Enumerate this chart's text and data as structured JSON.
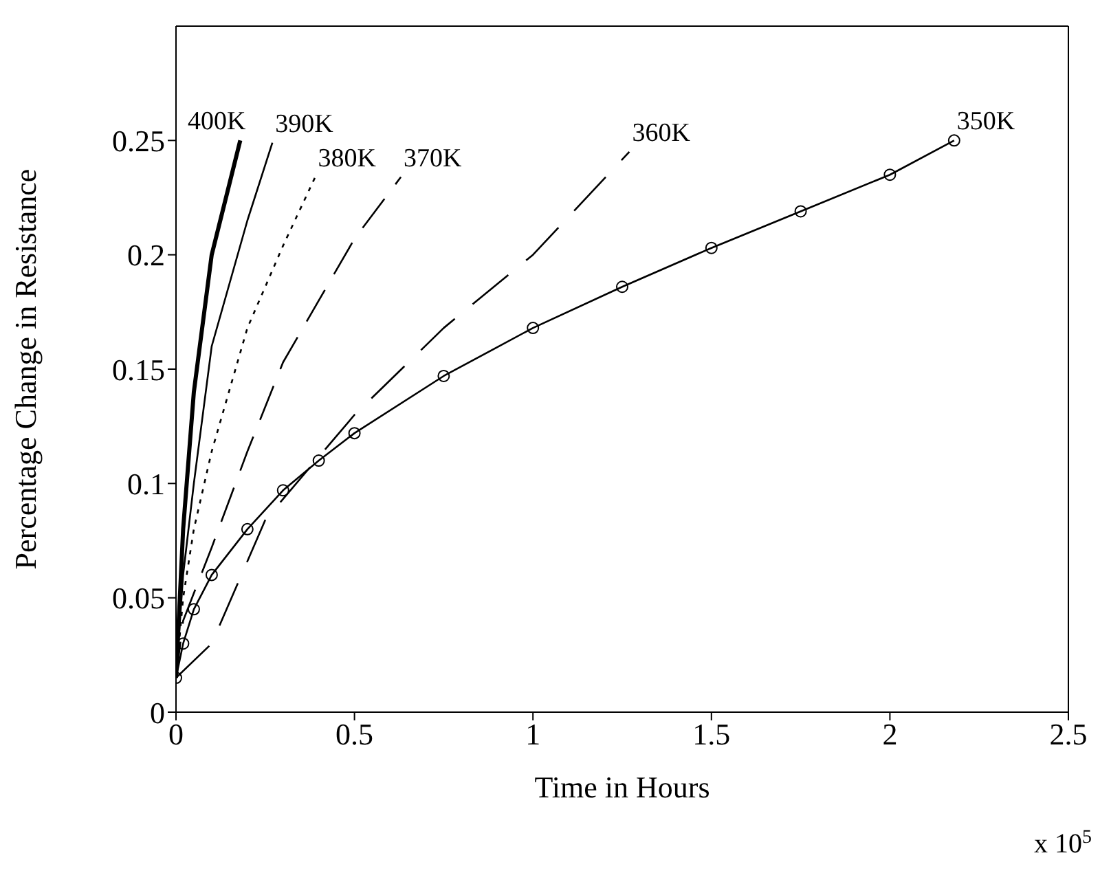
{
  "chart_data": {
    "type": "line",
    "xlabel": "Time in Hours",
    "ylabel": "Percentage Change in Resistance",
    "annotations": [
      "x 10$^{5}$"
    ],
    "xlim": [
      0,
      2.5
    ],
    "xticks": [
      0,
      0.5,
      1,
      1.5,
      2,
      2.5
    ],
    "ylim": [
      0,
      0.3
    ],
    "yticks": [
      0,
      0.05,
      0.1,
      0.15,
      0.2,
      0.25
    ],
    "series": [
      {
        "name": "400K",
        "color": "#000000",
        "line_style": "solid",
        "marker": "none",
        "x": [
          0,
          0.02,
          0.05,
          0.1,
          0.18
        ],
        "values": [
          0.015,
          0.08,
          0.14,
          0.2,
          0.25
        ]
      },
      {
        "name": "390K",
        "color": "#000000",
        "line_style": "solid",
        "marker": "none",
        "x": [
          0,
          0.02,
          0.05,
          0.1,
          0.2,
          0.27
        ],
        "values": [
          0.015,
          0.06,
          0.1,
          0.16,
          0.215,
          0.249
        ]
      },
      {
        "name": "380K",
        "color": "#000000",
        "line_style": "dotted",
        "marker": "none",
        "x": [
          0,
          0.02,
          0.05,
          0.1,
          0.2,
          0.3,
          0.39
        ],
        "values": [
          0.015,
          0.05,
          0.08,
          0.114,
          0.168,
          0.204,
          0.234
        ]
      },
      {
        "name": "370K",
        "color": "#000000",
        "line_style": "dashed",
        "marker": "none",
        "x": [
          0,
          0.02,
          0.1,
          0.2,
          0.3,
          0.4,
          0.5,
          0.63
        ],
        "values": [
          0.015,
          0.04,
          0.072,
          0.114,
          0.153,
          0.18,
          0.207,
          0.234
        ]
      },
      {
        "name": "360K",
        "color": "#000000",
        "line_style": "dashed",
        "marker": "none",
        "x": [
          0,
          0.1,
          0.25,
          0.5,
          0.75,
          1,
          1.27
        ],
        "values": [
          0.015,
          0.03,
          0.084,
          0.13,
          0.168,
          0.2,
          0.245
        ]
      },
      {
        "name": "350K",
        "color": "#000000",
        "line_style": "solid",
        "marker": "circle",
        "x": [
          0,
          0.02,
          0.05,
          0.1,
          0.2,
          0.3,
          0.4,
          0.5,
          0.75,
          1,
          1.25,
          1.5,
          1.75,
          2,
          2.18
        ],
        "values": [
          0.015,
          0.03,
          0.045,
          0.06,
          0.08,
          0.097,
          0.11,
          0.122,
          0.147,
          0.168,
          0.186,
          0.203,
          0.219,
          0.235,
          0.25
        ]
      }
    ]
  }
}
